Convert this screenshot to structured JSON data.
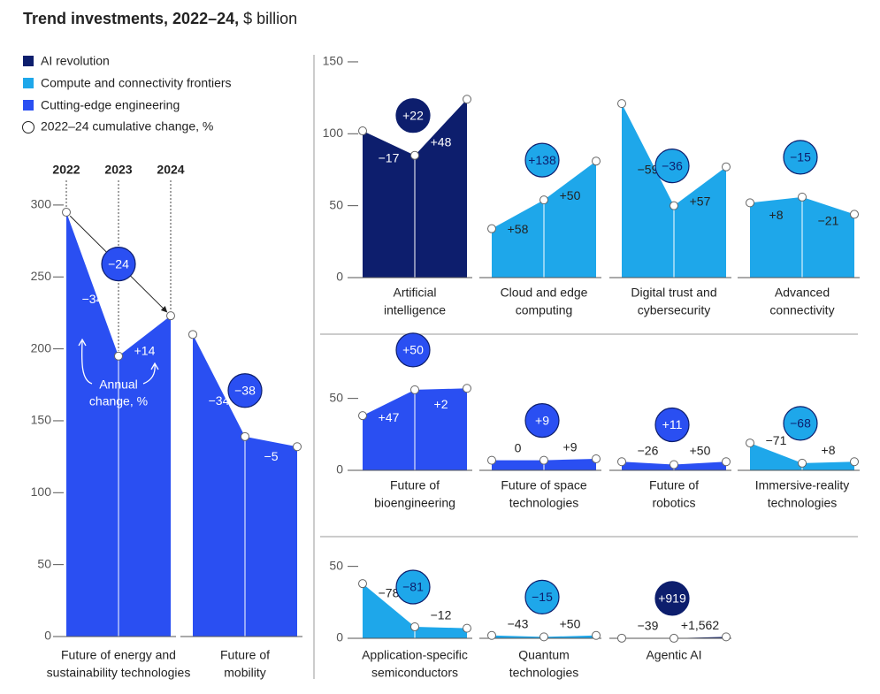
{
  "title": "Trend investments, 2022–24,",
  "title_unit": "$ billion",
  "chart_data": [
    {
      "type": "area",
      "ylim": [
        0,
        300
      ],
      "yticks": [
        0,
        50,
        100,
        150,
        200,
        250,
        300
      ],
      "categories": [
        "2022",
        "2023",
        "2024"
      ],
      "annotation": [
        "Annual",
        "change, %"
      ],
      "legend": [
        {
          "name": "AI revolution",
          "color": "#0d1e6d"
        },
        {
          "name": "Compute and connectivity frontiers",
          "color": "#1ea7ea"
        },
        {
          "name": "Cutting-edge engineering",
          "color": "#2a4ff2"
        },
        {
          "name": "2022–24 cumulative change, %"
        }
      ],
      "series": [
        {
          "name": [
            "Future of energy and",
            "sustainability technologies"
          ],
          "color": "#2a4ff2",
          "values": [
            295,
            195,
            223
          ],
          "changes": [
            -34,
            14
          ],
          "change_labels": [
            "−34",
            "+14"
          ],
          "cumulative": -24,
          "cumulative_label": "−24"
        },
        {
          "name": [
            "Future of",
            "mobility"
          ],
          "color": "#2a4ff2",
          "values": [
            210,
            139,
            132
          ],
          "changes": [
            -34,
            -5
          ],
          "change_labels": [
            "−34",
            "−5"
          ],
          "cumulative": -38,
          "cumulative_label": "−38"
        }
      ]
    },
    {
      "type": "area",
      "ylim": [
        0,
        150
      ],
      "yticks": [
        0,
        50,
        100,
        150
      ],
      "series": [
        {
          "name": [
            "Artificial",
            "intelligence"
          ],
          "color": "#0d1e6d",
          "values": [
            102,
            85,
            124
          ],
          "changes": [
            -17,
            48
          ],
          "change_labels": [
            "−17",
            "+48"
          ],
          "cumulative": 22,
          "cumulative_label": "+22"
        },
        {
          "name": [
            "Cloud and edge",
            "computing"
          ],
          "color": "#1ea7ea",
          "values": [
            34,
            54,
            81
          ],
          "changes": [
            58,
            50
          ],
          "change_labels": [
            "+58",
            "+50"
          ],
          "cumulative": 138,
          "cumulative_label": "+138"
        },
        {
          "name": [
            "Digital trust and",
            "cybersecurity"
          ],
          "color": "#1ea7ea",
          "values": [
            121,
            50,
            77
          ],
          "changes": [
            -59,
            57
          ],
          "change_labels": [
            "−59",
            "+57"
          ],
          "cumulative": -36,
          "cumulative_label": "−36"
        },
        {
          "name": [
            "Advanced",
            "connectivity"
          ],
          "color": "#1ea7ea",
          "values": [
            52,
            56,
            44
          ],
          "changes": [
            8,
            -21
          ],
          "change_labels": [
            "+8",
            "−21"
          ],
          "cumulative": -15,
          "cumulative_label": "−15"
        }
      ]
    },
    {
      "type": "area",
      "ylim": [
        0,
        90
      ],
      "yticks": [
        0,
        50
      ],
      "series": [
        {
          "name": [
            "Future of",
            "bioengineering"
          ],
          "color": "#2a4ff2",
          "values": [
            38,
            56,
            57
          ],
          "changes": [
            47,
            2
          ],
          "change_labels": [
            "+47",
            "+2"
          ],
          "cumulative": 50,
          "cumulative_label": "+50"
        },
        {
          "name": [
            "Future of space",
            "technologies"
          ],
          "color": "#2a4ff2",
          "values": [
            7,
            7,
            8
          ],
          "changes": [
            0,
            9
          ],
          "change_labels": [
            "0",
            "+9"
          ],
          "cumulative": 9,
          "cumulative_label": "+9"
        },
        {
          "name": [
            "Future of",
            "robotics"
          ],
          "color": "#2a4ff2",
          "values": [
            6,
            4,
            6
          ],
          "changes": [
            -26,
            50
          ],
          "change_labels": [
            "−26",
            "+50"
          ],
          "cumulative": 11,
          "cumulative_label": "+11"
        },
        {
          "name": [
            "Immersive-reality",
            "technologies"
          ],
          "color": "#1ea7ea",
          "values": [
            19,
            5,
            6
          ],
          "changes": [
            -71,
            8
          ],
          "change_labels": [
            "−71",
            "+8"
          ],
          "cumulative": -68,
          "cumulative_label": "−68"
        }
      ]
    },
    {
      "type": "area",
      "ylim": [
        0,
        70
      ],
      "yticks": [
        0,
        50
      ],
      "series": [
        {
          "name": [
            "Application-specific",
            "semiconductors"
          ],
          "color": "#1ea7ea",
          "values": [
            38,
            8,
            7
          ],
          "changes": [
            -78,
            -12
          ],
          "change_labels": [
            "−78",
            "−12"
          ],
          "cumulative": -81,
          "cumulative_label": "−81"
        },
        {
          "name": [
            "Quantum",
            "technologies"
          ],
          "color": "#1ea7ea",
          "values": [
            2,
            1,
            2
          ],
          "changes": [
            -43,
            50
          ],
          "change_labels": [
            "−43",
            "+50"
          ],
          "cumulative": -15,
          "cumulative_label": "−15"
        },
        {
          "name": [
            "Agentic AI"
          ],
          "color": "#0d1e6d",
          "values": [
            0.1,
            0.06,
            1
          ],
          "changes": [
            -39,
            1562
          ],
          "change_labels": [
            "−39",
            "+1,562"
          ],
          "cumulative": 919,
          "cumulative_label": "+919"
        }
      ]
    }
  ]
}
